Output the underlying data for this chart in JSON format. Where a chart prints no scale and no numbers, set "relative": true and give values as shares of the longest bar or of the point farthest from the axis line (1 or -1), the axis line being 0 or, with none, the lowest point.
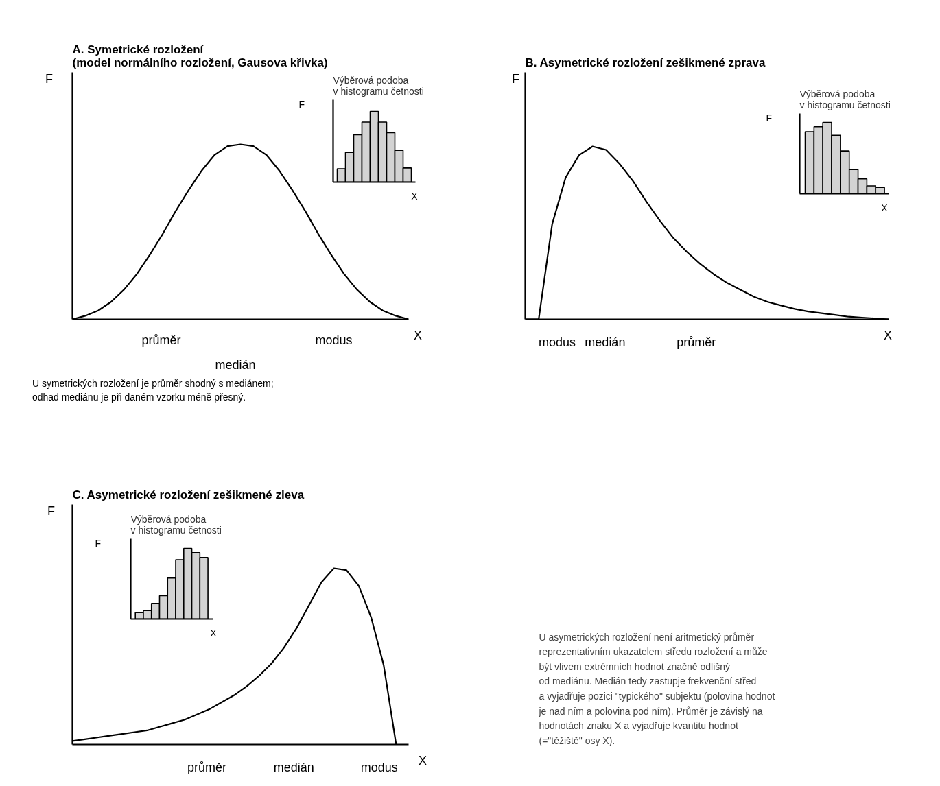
{
  "chart_data": [
    {
      "type": "line",
      "title": "A. Symetrické rozložení\n(model normálního rozložení, Gausova křivka)",
      "xlabel": "X",
      "ylabel": "F",
      "relative": true,
      "color": "#000000",
      "categories": [
        null,
        null,
        null,
        null,
        null,
        null,
        null,
        null,
        null,
        null,
        null,
        null,
        null,
        null,
        null,
        null,
        null,
        null,
        null,
        null,
        null,
        null,
        null,
        null,
        null,
        null,
        null
      ],
      "values": [
        0,
        0.02,
        0.05,
        0.1,
        0.17,
        0.26,
        0.37,
        0.49,
        0.62,
        0.74,
        0.85,
        0.94,
        0.99,
        1,
        0.99,
        0.94,
        0.85,
        0.74,
        0.62,
        0.49,
        0.37,
        0.26,
        0.17,
        0.1,
        0.05,
        0.02,
        0
      ],
      "annotations": [
        "průměr",
        "medián",
        "modus",
        "U symetrických rozložení je průměr shodný s mediánem;\nodhad mediánu je při daném vzorku méně přesný."
      ]
    },
    {
      "type": "bar",
      "title": "Výběrová podoba\nv histogramu četnosti",
      "xlabel": "X",
      "ylabel": "F",
      "relative": true,
      "color": "#d3d3d3",
      "categories": [
        null,
        null,
        null,
        null,
        null,
        null,
        null,
        null,
        null
      ],
      "values": [
        0.19,
        0.42,
        0.67,
        0.85,
        1,
        0.85,
        0.7,
        0.45,
        0.2
      ]
    },
    {
      "type": "line",
      "title": "B. Asymetrické rozložení zešikmené zprava",
      "xlabel": "X",
      "ylabel": "F",
      "relative": true,
      "color": "#000000",
      "categories": [
        null,
        null,
        null,
        null,
        null,
        null,
        null,
        null,
        null,
        null,
        null,
        null,
        null,
        null,
        null,
        null,
        null,
        null,
        null,
        null,
        null,
        null,
        null,
        null,
        null,
        null,
        null,
        null
      ],
      "values": [
        0,
        0,
        0.55,
        0.82,
        0.95,
        1,
        0.98,
        0.9,
        0.8,
        0.68,
        0.57,
        0.47,
        0.39,
        0.32,
        0.26,
        0.21,
        0.17,
        0.13,
        0.1,
        0.08,
        0.06,
        0.045,
        0.035,
        0.025,
        0.015,
        0.01,
        0.005,
        0
      ],
      "annotations": [
        "modus",
        "medián",
        "průměr"
      ]
    },
    {
      "type": "bar",
      "title": "Výběrová podoba\nv histogramu četnosti",
      "xlabel": "X",
      "ylabel": "F",
      "relative": true,
      "color": "#d3d3d3",
      "categories": [
        null,
        null,
        null,
        null,
        null,
        null,
        null,
        null,
        null
      ],
      "values": [
        0.87,
        0.94,
        1,
        0.82,
        0.6,
        0.34,
        0.21,
        0.11,
        0.09
      ]
    },
    {
      "type": "line",
      "title": "C. Asymetrické rozložení zešikmené zleva",
      "xlabel": "X",
      "ylabel": "F",
      "relative": true,
      "color": "#000000",
      "categories": [
        null,
        null,
        null,
        null,
        null,
        null,
        null,
        null,
        null,
        null,
        null,
        null,
        null,
        null,
        null,
        null,
        null,
        null,
        null,
        null,
        null,
        null,
        null,
        null,
        null,
        null,
        null
      ],
      "values": [
        0.02,
        0.03,
        0.04,
        0.05,
        0.06,
        0.07,
        0.08,
        0.1,
        0.12,
        0.14,
        0.17,
        0.2,
        0.24,
        0.28,
        0.33,
        0.39,
        0.46,
        0.55,
        0.66,
        0.79,
        0.92,
        1,
        0.99,
        0.9,
        0.72,
        0.45,
        0
      ],
      "annotations": [
        "průměr",
        "medián",
        "modus"
      ]
    },
    {
      "type": "bar",
      "title": "Výběrová podoba\nv histogramu četnosti",
      "xlabel": "X",
      "ylabel": "F",
      "relative": true,
      "color": "#d3d3d3",
      "categories": [
        null,
        null,
        null,
        null,
        null,
        null,
        null,
        null,
        null
      ],
      "values": [
        0.09,
        0.12,
        0.22,
        0.33,
        0.58,
        0.84,
        1,
        0.94,
        0.87
      ]
    },
    {
      "type": "other",
      "annotations": [
        "U asymetrických rozložení není aritmetický průměr\nreprezentativním ukazatelem středu rozložení a může\nbýt vlivem extrémních hodnot značně odlišný\nod mediánu. Medián tedy zastupje frekvenční střed\na vyjadřuje pozici \"typického\" subjektu (polovina hodnot\nje nad ním a polovina pod ním). Průměr je závislý na\nhodnotách znaku X a vyjadřuje kvantitu hodnot\n(=\"těžiště\" osy X)."
      ]
    }
  ]
}
